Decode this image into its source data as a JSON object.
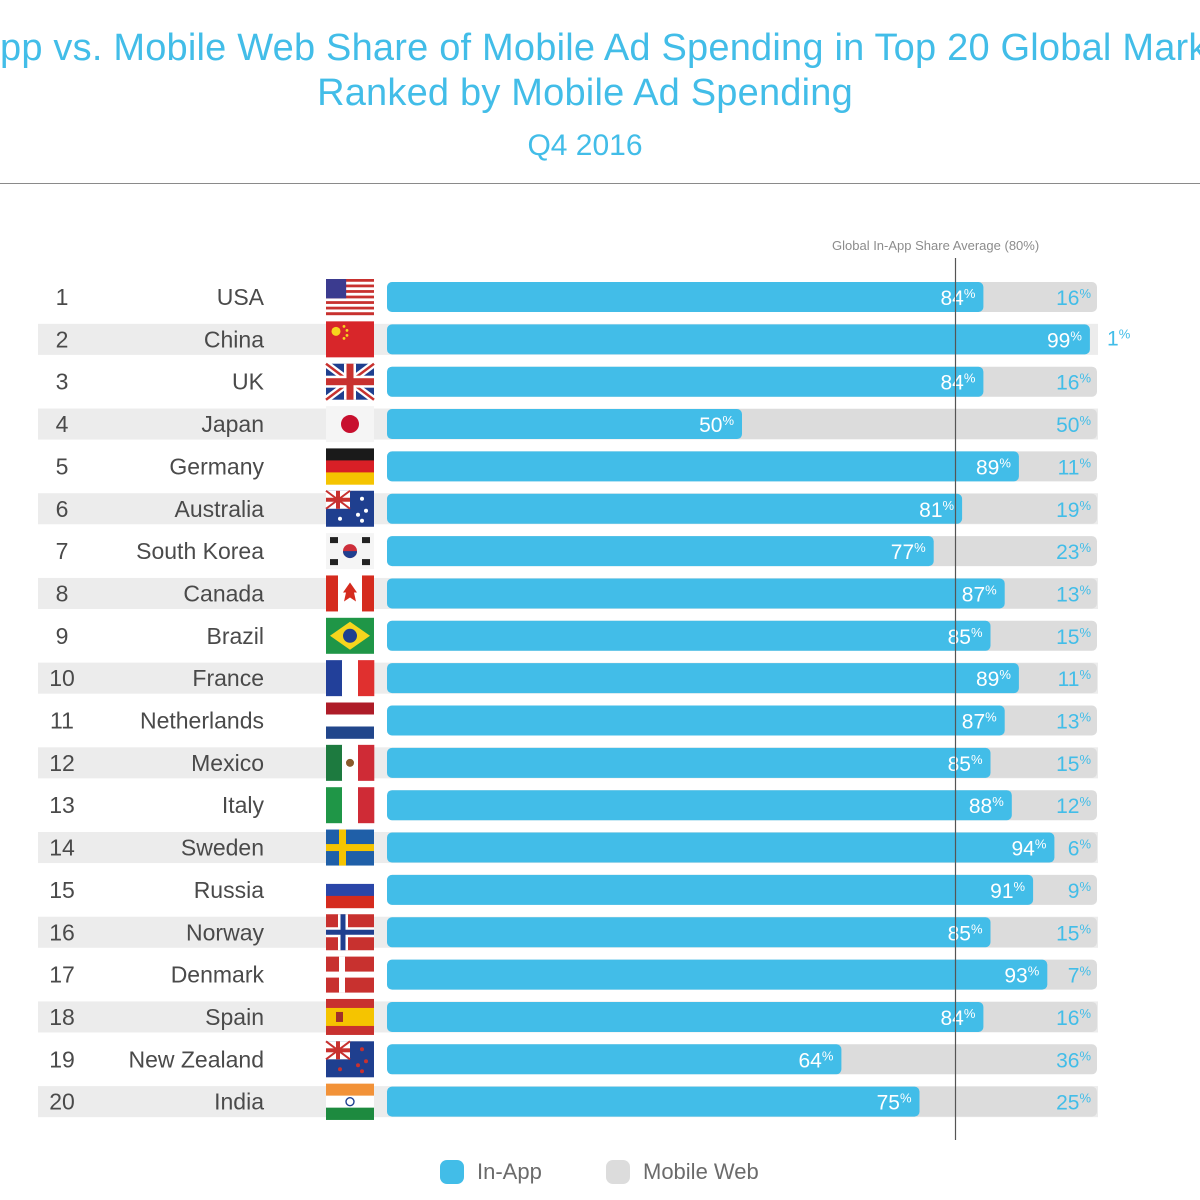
{
  "title": {
    "line1": "pp vs. Mobile Web Share of Mobile Ad Spending in Top 20 Global Marke",
    "line2": "Ranked by Mobile Ad Spending",
    "subtitle": "Q4 2016"
  },
  "reference_line": {
    "label": "Global In-App Share Average (80%)",
    "value": 80
  },
  "colors": {
    "title": "#42bde8",
    "in_app": "#42bde8",
    "mobile_web": "#dcdcdc",
    "row_band": "#ececec",
    "text": "#4a4a4a",
    "in_app_label": "#ffffff",
    "mobile_web_label": "#42bde8"
  },
  "legend": [
    {
      "label": "In-App",
      "color": "#42bde8"
    },
    {
      "label": "Mobile Web",
      "color": "#dcdcdc"
    }
  ],
  "chart_data": {
    "type": "bar",
    "orientation": "horizontal",
    "stacked": true,
    "unit": "%",
    "xlim": [
      0,
      100
    ],
    "legend_position": "bottom",
    "ranks": [
      "1",
      "2",
      "3",
      "4",
      "5",
      "6",
      "7",
      "8",
      "9",
      "10",
      "11",
      "12",
      "13",
      "14",
      "15",
      "16",
      "17",
      "18",
      "19",
      "20"
    ],
    "categories": [
      "USA",
      "China",
      "UK",
      "Japan",
      "Germany",
      "Australia",
      "South Korea",
      "Canada",
      "Brazil",
      "France",
      "Netherlands",
      "Mexico",
      "Italy",
      "Sweden",
      "Russia",
      "Norway",
      "Denmark",
      "Spain",
      "New Zealand",
      "India"
    ],
    "flags": [
      "flag-usa-icon",
      "flag-china-icon",
      "flag-uk-icon",
      "flag-japan-icon",
      "flag-germany-icon",
      "flag-australia-icon",
      "flag-south-korea-icon",
      "flag-canada-icon",
      "flag-brazil-icon",
      "flag-france-icon",
      "flag-netherlands-icon",
      "flag-mexico-icon",
      "flag-italy-icon",
      "flag-sweden-icon",
      "flag-russia-icon",
      "flag-norway-icon",
      "flag-denmark-icon",
      "flag-spain-icon",
      "flag-new-zealand-icon",
      "flag-india-icon"
    ],
    "series": [
      {
        "name": "In-App",
        "values": [
          84,
          99,
          84,
          50,
          89,
          81,
          77,
          87,
          85,
          89,
          87,
          85,
          88,
          94,
          91,
          85,
          93,
          84,
          64,
          75
        ]
      },
      {
        "name": "Mobile Web",
        "values": [
          16,
          1,
          16,
          50,
          11,
          19,
          23,
          13,
          15,
          11,
          13,
          15,
          12,
          6,
          9,
          15,
          7,
          16,
          36,
          25
        ]
      }
    ]
  }
}
